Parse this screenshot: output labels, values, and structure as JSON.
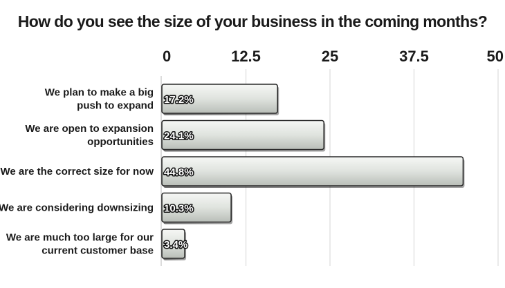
{
  "chart_data": {
    "type": "bar",
    "orientation": "horizontal",
    "title": "How do you see the size of your business in the coming months?",
    "categories": [
      [
        "We plan to make a big",
        "push to expand"
      ],
      [
        "We are open to expansion",
        "opportunities"
      ],
      [
        "We are the correct size for now"
      ],
      [
        "We are considering downsizing"
      ],
      [
        "We are much too large for our",
        "current customer base"
      ]
    ],
    "values": [
      17.2,
      24.1,
      44.8,
      10.3,
      3.4
    ],
    "data_labels": [
      "17.2%",
      "24.1%",
      "44.8%",
      "10.3%",
      "3.4%"
    ],
    "xlim": [
      0,
      50
    ],
    "ticks": [
      0,
      12.5,
      25,
      37.5,
      50
    ],
    "tick_labels": [
      "0",
      "12.5",
      "25",
      "37.5",
      "50"
    ],
    "axis_position": "top",
    "grid": true,
    "legend": "none",
    "bar_color": "#dde1dc",
    "bar_edge_color": "#2a2a2a"
  }
}
